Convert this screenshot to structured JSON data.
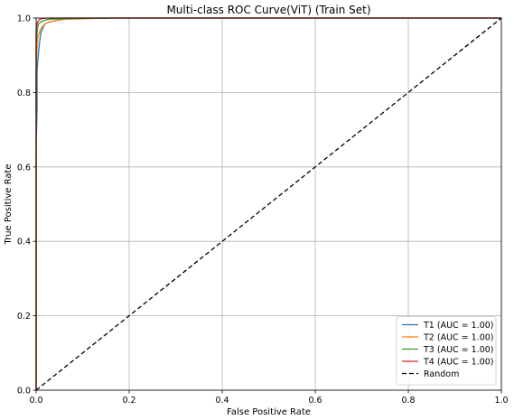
{
  "chart_data": {
    "type": "line",
    "title": "Multi-class ROC Curve(ViT) (Train Set)",
    "xlabel": "False Positive Rate",
    "ylabel": "True Positive Rate",
    "xlim": [
      0.0,
      1.0
    ],
    "ylim": [
      0.0,
      1.0
    ],
    "xticks": [
      "0.0",
      "0.2",
      "0.4",
      "0.6",
      "0.8",
      "1.0"
    ],
    "yticks": [
      "0.0",
      "0.2",
      "0.4",
      "0.6",
      "0.8",
      "1.0"
    ],
    "grid": true,
    "legend_position": "lower-right",
    "series": [
      {
        "name": "T1 (AUC = 1.00)",
        "color": "#1f77b4",
        "dash": "solid",
        "x": [
          0.0,
          0.0,
          0.002,
          0.002,
          0.004,
          0.006,
          0.008,
          0.01,
          0.015,
          0.02,
          0.03,
          0.05,
          0.06,
          0.15,
          1.0
        ],
        "y": [
          0.0,
          0.64,
          0.76,
          0.86,
          0.89,
          0.92,
          0.94,
          0.96,
          0.975,
          0.985,
          0.99,
          0.995,
          1.0,
          1.0,
          1.0
        ]
      },
      {
        "name": "T2 (AUC = 1.00)",
        "color": "#ff7f0e",
        "dash": "solid",
        "x": [
          0.0,
          0.0,
          0.002,
          0.004,
          0.008,
          0.012,
          0.02,
          0.03,
          0.05,
          0.06,
          0.1,
          0.15,
          1.0
        ],
        "y": [
          0.0,
          0.86,
          0.92,
          0.95,
          0.965,
          0.975,
          0.985,
          0.99,
          0.995,
          0.997,
          0.998,
          1.0,
          1.0
        ]
      },
      {
        "name": "T3 (AUC = 1.00)",
        "color": "#2ca02c",
        "dash": "solid",
        "x": [
          0.0,
          0.0,
          0.002,
          0.004,
          0.006,
          0.01,
          0.02,
          0.03,
          0.05,
          0.1,
          0.155,
          0.155,
          1.0
        ],
        "y": [
          0.0,
          0.93,
          0.96,
          0.98,
          0.985,
          0.99,
          0.995,
          0.997,
          0.998,
          0.999,
          0.999,
          1.0,
          1.0
        ]
      },
      {
        "name": "T4 (AUC = 1.00)",
        "color": "#d62728",
        "dash": "solid",
        "x": [
          0.0,
          0.0,
          0.003,
          0.008,
          0.02,
          1.0
        ],
        "y": [
          0.0,
          0.97,
          0.99,
          0.997,
          1.0,
          1.0
        ]
      },
      {
        "name": "Random",
        "color": "#000000",
        "dash": "dashed",
        "x": [
          0.0,
          1.0
        ],
        "y": [
          0.0,
          1.0
        ]
      }
    ]
  }
}
